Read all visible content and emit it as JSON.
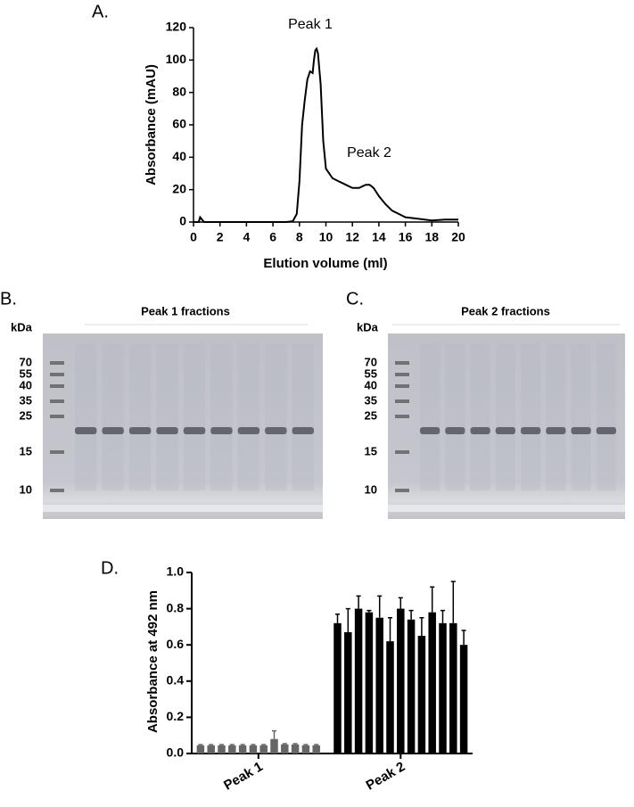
{
  "chart_data": [
    {
      "type": "line",
      "panel": "A.",
      "xlabel": "Elution volume (ml)",
      "ylabel": "Absorbance (mAU)",
      "annotations": [
        "Peak 1",
        "Peak 2"
      ],
      "x": [
        0,
        0.4,
        0.5,
        0.6,
        0.8,
        7,
        7.5,
        7.8,
        8.0,
        8.2,
        8.4,
        8.6,
        8.8,
        9.0,
        9.1,
        9.2,
        9.3,
        9.4,
        9.6,
        9.8,
        10.0,
        10.5,
        11,
        11.5,
        12,
        12.5,
        13,
        13.3,
        13.6,
        14,
        14.5,
        15,
        15.5,
        16,
        17,
        18,
        19,
        20
      ],
      "values": [
        0,
        0,
        3,
        2,
        0,
        0,
        0.5,
        5,
        25,
        60,
        75,
        88,
        93,
        92,
        100,
        106,
        107,
        104,
        85,
        50,
        33,
        27,
        25,
        23,
        21,
        21,
        23,
        23,
        21,
        16,
        11,
        7,
        5,
        3,
        2,
        1,
        1.5,
        1.5
      ],
      "color": "#000000",
      "xlim": [
        0,
        20
      ],
      "xticks": [
        0,
        2,
        4,
        6,
        8,
        10,
        12,
        14,
        16,
        18,
        20
      ],
      "ylim": [
        0,
        120
      ],
      "yticks": [
        0,
        20,
        40,
        60,
        80,
        100,
        120
      ]
    },
    {
      "type": "bar",
      "panel": "D.",
      "ylabel": "Absorbance at 492 nm",
      "series": [
        {
          "name": "Peak 1",
          "color": "#666666",
          "values": [
            0.045,
            0.045,
            0.045,
            0.045,
            0.045,
            0.045,
            0.045,
            0.08,
            0.05,
            0.05,
            0.045,
            0.045
          ],
          "errors": [
            0.004,
            0.004,
            0.004,
            0.004,
            0.004,
            0.004,
            0.004,
            0.045,
            0.004,
            0.004,
            0.004,
            0.004
          ]
        },
        {
          "name": "Peak 2",
          "color": "#000000",
          "values": [
            0.72,
            0.67,
            0.8,
            0.78,
            0.75,
            0.62,
            0.8,
            0.74,
            0.65,
            0.78,
            0.72,
            0.72,
            0.6
          ],
          "errors": [
            0.05,
            0.13,
            0.07,
            0.01,
            0.12,
            0.13,
            0.06,
            0.05,
            0.1,
            0.14,
            0.07,
            0.23,
            0.08
          ]
        }
      ],
      "ylim": [
        0,
        1
      ],
      "yticks": [
        {
          "value": 0,
          "label": "0.0"
        },
        0.2,
        0.4,
        0.6,
        0.8,
        {
          "value": 1,
          "label": "1.0"
        }
      ]
    }
  ],
  "gels": [
    {
      "panel": "B.",
      "unit": "kDa",
      "title": "Peak 1 fractions",
      "markers": [
        70,
        55,
        40,
        35,
        25,
        15,
        10
      ]
    },
    {
      "panel": "C.",
      "unit": "kDa",
      "title": "Peak 2 fractions",
      "markers": [
        70,
        55,
        40,
        35,
        25,
        15,
        10
      ]
    }
  ]
}
